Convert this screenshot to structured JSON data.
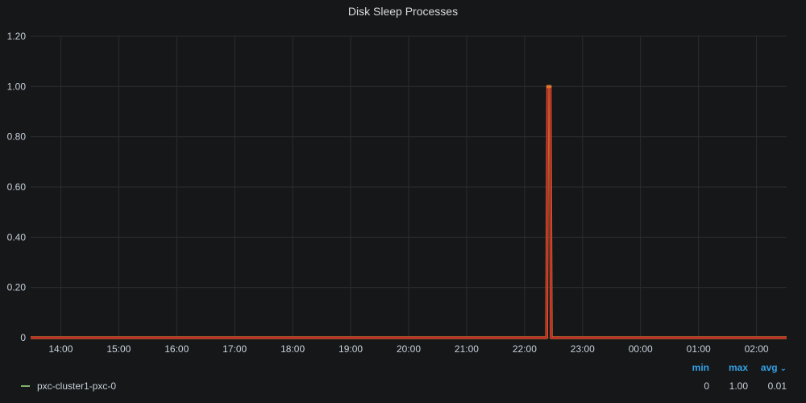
{
  "panel": {
    "title": "Disk Sleep Processes"
  },
  "colors": {
    "background": "#161719",
    "grid": "#2c2d31",
    "series_line": "#c4162a",
    "series_line_highlight": "#e0752d",
    "legend_swatch": "#7eb26d",
    "legend_header": "#33a2e5",
    "text": "#c7d0d9"
  },
  "chart_data": {
    "type": "line",
    "title": "Disk Sleep Processes",
    "xlabel": "",
    "ylabel": "",
    "ylim": [
      0,
      1.2
    ],
    "y_ticks": [
      "0",
      "0.20",
      "0.40",
      "0.60",
      "0.80",
      "1.00",
      "1.20"
    ],
    "y_tick_values": [
      0,
      0.2,
      0.4,
      0.6,
      0.8,
      1.0,
      1.2
    ],
    "x_ticks": [
      "14:00",
      "15:00",
      "16:00",
      "17:00",
      "18:00",
      "19:00",
      "20:00",
      "21:00",
      "22:00",
      "23:00",
      "00:00",
      "01:00",
      "02:00"
    ],
    "xlim_hours": [
      13.48,
      26.52
    ],
    "grid": true,
    "legend_position": "bottom",
    "series": [
      {
        "name": "pxc-cluster1-pxc-0",
        "x_hours": [
          13.48,
          22.38,
          22.4,
          22.44,
          22.46,
          26.52
        ],
        "x": [
          "13:29",
          "22:23",
          "22:24",
          "22:26",
          "22:28",
          "02:31"
        ],
        "values": [
          0,
          0,
          1,
          1,
          0,
          0
        ]
      }
    ]
  },
  "legend": {
    "headers": {
      "min": "min",
      "max": "max",
      "avg": "avg"
    },
    "sort_icon": "chevron-down-icon",
    "rows": [
      {
        "name": "pxc-cluster1-pxc-0",
        "min": "0",
        "max": "1.00",
        "avg": "0.01"
      }
    ]
  }
}
